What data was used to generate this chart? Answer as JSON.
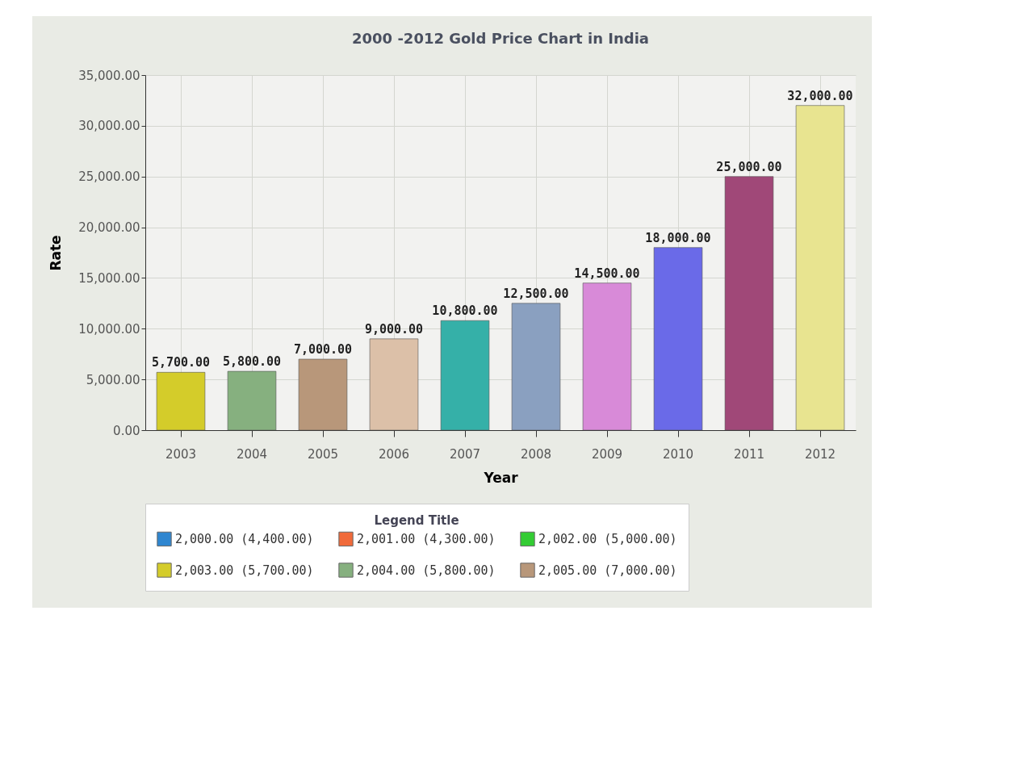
{
  "chart_data": {
    "type": "bar",
    "title": "2000 -2012 Gold Price Chart in India",
    "xlabel": "Year",
    "ylabel": "Rate",
    "legend_title": "Legend Title",
    "categories": [
      "2003",
      "2004",
      "2005",
      "2006",
      "2007",
      "2008",
      "2009",
      "2010",
      "2011",
      "2012"
    ],
    "series": [
      {
        "name": "2,000.00 (4,400.00)",
        "color": "#2f86d0",
        "values": [
          null,
          null,
          null,
          null,
          null,
          null,
          null,
          null,
          null,
          null
        ]
      },
      {
        "name": "2,001.00 (4,300.00)",
        "color": "#f06a3a",
        "values": [
          null,
          null,
          null,
          null,
          null,
          null,
          null,
          null,
          null,
          null
        ]
      },
      {
        "name": "2,002.00 (5,000.00)",
        "color": "#33cc33",
        "values": [
          null,
          null,
          null,
          null,
          null,
          null,
          null,
          null,
          null,
          null
        ]
      },
      {
        "name": "2,003.00 (5,700.00)",
        "color": "#d4cc2a",
        "values": [
          5700,
          null,
          null,
          null,
          null,
          null,
          null,
          null,
          null,
          null
        ],
        "value_labels": [
          "5,700.00",
          null,
          null,
          null,
          null,
          null,
          null,
          null,
          null,
          null
        ]
      },
      {
        "name": "2,004.00 (5,800.00)",
        "color": "#86b07f",
        "values": [
          null,
          5800,
          null,
          null,
          null,
          null,
          null,
          null,
          null,
          null
        ],
        "value_labels": [
          null,
          "5,800.00",
          null,
          null,
          null,
          null,
          null,
          null,
          null,
          null
        ]
      },
      {
        "name": "2,005.00 (7,000.00)",
        "color": "#b8977a",
        "values": [
          null,
          null,
          7000,
          null,
          null,
          null,
          null,
          null,
          null,
          null
        ],
        "value_labels": [
          null,
          null,
          "7,000.00",
          null,
          null,
          null,
          null,
          null,
          null,
          null
        ]
      },
      {
        "color": "#dcc0a8",
        "values": [
          null,
          null,
          null,
          9000,
          null,
          null,
          null,
          null,
          null,
          null
        ],
        "value_labels": [
          null,
          null,
          null,
          "9,000.00",
          null,
          null,
          null,
          null,
          null,
          null
        ]
      },
      {
        "color": "#35b0a8",
        "values": [
          null,
          null,
          null,
          null,
          10800,
          null,
          null,
          null,
          null,
          null
        ],
        "value_labels": [
          null,
          null,
          null,
          null,
          "10,800.00",
          null,
          null,
          null,
          null,
          null
        ]
      },
      {
        "color": "#8aa0c0",
        "values": [
          null,
          null,
          null,
          null,
          null,
          12500,
          null,
          null,
          null,
          null
        ],
        "value_labels": [
          null,
          null,
          null,
          null,
          null,
          "12,500.00",
          null,
          null,
          null,
          null
        ]
      },
      {
        "color": "#d88ad8",
        "values": [
          null,
          null,
          null,
          null,
          null,
          null,
          14500,
          null,
          null,
          null
        ],
        "value_labels": [
          null,
          null,
          null,
          null,
          null,
          null,
          "14,500.00",
          null,
          null,
          null
        ]
      },
      {
        "color": "#6a6ae8",
        "values": [
          null,
          null,
          null,
          null,
          null,
          null,
          null,
          18000,
          null,
          null
        ],
        "value_labels": [
          null,
          null,
          null,
          null,
          null,
          null,
          null,
          "18,000.00",
          null,
          null
        ]
      },
      {
        "color": "#a04878",
        "values": [
          null,
          null,
          null,
          null,
          null,
          null,
          null,
          null,
          25000,
          null
        ],
        "value_labels": [
          null,
          null,
          null,
          null,
          null,
          null,
          null,
          null,
          "25,000.00",
          null
        ]
      },
      {
        "color": "#e8e490",
        "values": [
          null,
          null,
          null,
          null,
          null,
          null,
          null,
          null,
          null,
          32000
        ],
        "value_labels": [
          null,
          null,
          null,
          null,
          null,
          null,
          null,
          null,
          null,
          "32,000.00"
        ]
      }
    ],
    "ylim": [
      0,
      35000
    ],
    "yticks": [
      {
        "value": 0,
        "label": "0.00"
      },
      {
        "value": 5000,
        "label": "5,000.00"
      },
      {
        "value": 10000,
        "label": "10,000.00"
      },
      {
        "value": 15000,
        "label": "15,000.00"
      },
      {
        "value": 20000,
        "label": "20,000.00"
      },
      {
        "value": 25000,
        "label": "25,000.00"
      },
      {
        "value": 30000,
        "label": "30,000.00"
      },
      {
        "value": 35000,
        "label": "35,000.00"
      }
    ],
    "grid": true,
    "legend": "bottom"
  }
}
